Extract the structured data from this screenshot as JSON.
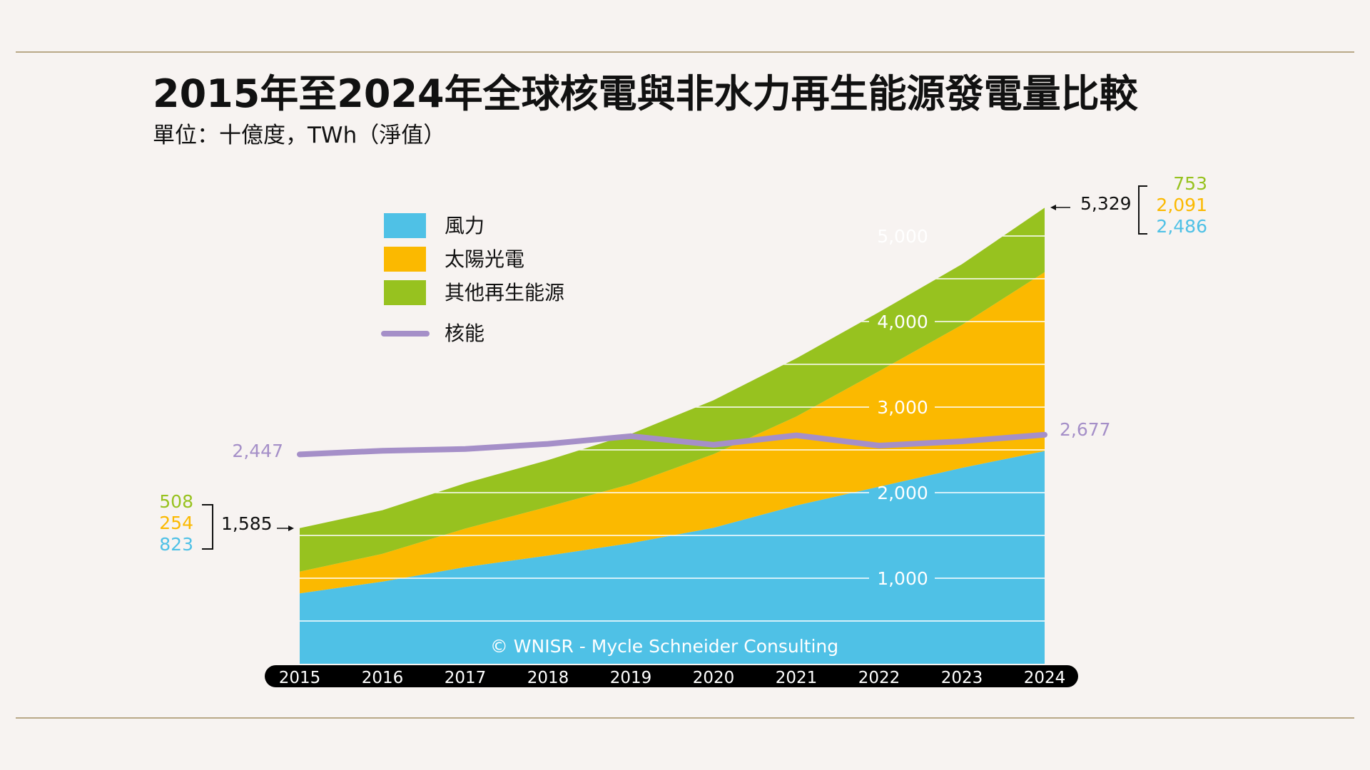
{
  "chart_data": {
    "type": "area",
    "title": "2015年至2024年全球核電與非水力再生能源發電量比較",
    "subtitle": "單位：十億度，TWh（淨值）",
    "categories": [
      "2015",
      "2016",
      "2017",
      "2018",
      "2019",
      "2020",
      "2021",
      "2022",
      "2023",
      "2024"
    ],
    "stacked": true,
    "ylim": [
      0,
      5500
    ],
    "y_ticks": [
      "1,000",
      "2,000",
      "3,000",
      "4,000",
      "5,000"
    ],
    "grid": true,
    "legend_position": "top-left",
    "series": [
      {
        "name": "風力",
        "type": "area",
        "color": "#4fc1e6",
        "values": [
          823,
          960,
          1130,
          1265,
          1410,
          1590,
          1850,
          2070,
          2290,
          2486
        ]
      },
      {
        "name": "太陽光電",
        "type": "area",
        "color": "#fbb900",
        "values": [
          254,
          325,
          450,
          570,
          690,
          860,
          1040,
          1350,
          1670,
          2091
        ]
      },
      {
        "name": "其他再生能源",
        "type": "area",
        "color": "#97c21f",
        "values": [
          508,
          510,
          530,
          545,
          585,
          630,
          680,
          690,
          710,
          753
        ]
      },
      {
        "name": "核能",
        "type": "line",
        "color": "#a58fc8",
        "values": [
          2447,
          2490,
          2510,
          2570,
          2660,
          2560,
          2670,
          2550,
          2600,
          2677
        ]
      }
    ],
    "annotations": {
      "start_total": "1,585",
      "start_parts": [
        "508",
        "254",
        "823"
      ],
      "end_total": "5,329",
      "end_parts": [
        "753",
        "2,091",
        "2,486"
      ],
      "nuclear_start": "2,447",
      "nuclear_end": "2,677"
    },
    "credit": "© WNISR - Mycle Schneider Consulting"
  }
}
